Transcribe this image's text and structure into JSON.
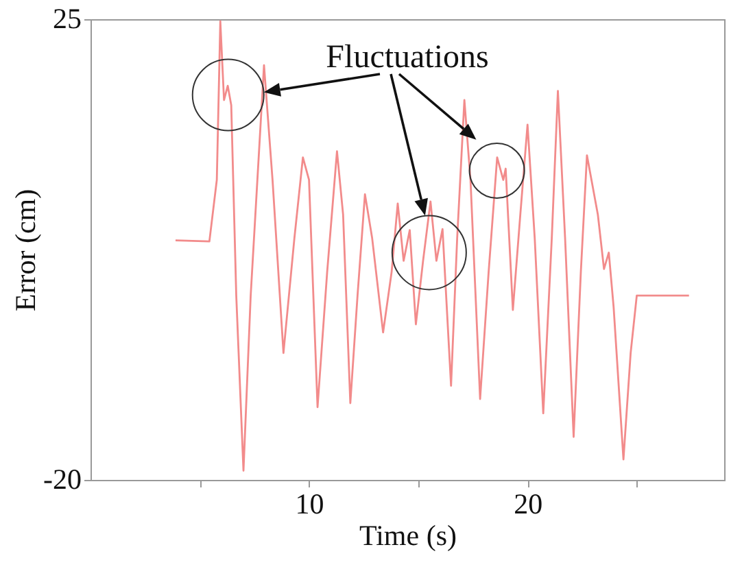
{
  "chart_data": {
    "type": "line",
    "xlabel": "Time (s)",
    "ylabel": "Error (cm)",
    "annotations": [
      {
        "text": "Fluctuations",
        "x": 18.61,
        "y": 11.5
      }
    ],
    "x": [
      3.89,
      5.44,
      5.78,
      5.94,
      6.11,
      6.28,
      6.44,
      6.67,
      7.0,
      7.33,
      7.94,
      8.33,
      8.83,
      9.33,
      9.72,
      10.0,
      10.39,
      10.83,
      11.28,
      11.56,
      11.89,
      12.22,
      12.56,
      12.89,
      13.39,
      13.78,
      14.06,
      14.33,
      14.61,
      14.89,
      15.22,
      15.56,
      15.83,
      16.11,
      16.5,
      16.78,
      17.11,
      17.39,
      17.83,
      18.22,
      18.61,
      18.89,
      19.0,
      19.33,
      19.67,
      20.0,
      20.33,
      20.72,
      21.11,
      21.39,
      21.72,
      22.11,
      22.44,
      22.72,
      23.22,
      23.5,
      23.72,
      23.94,
      24.39,
      24.72,
      25.0,
      27.39
    ],
    "series": [
      {
        "color": "#f28b8b",
        "values": [
          3.4,
          3.3,
          9.3,
          24.8,
          17.1,
          18.5,
          16.6,
          -2.0,
          -19.1,
          -2.0,
          20.5,
          9.3,
          -7.6,
          3.6,
          11.5,
          9.3,
          -12.9,
          0.3,
          12.1,
          5.9,
          -12.5,
          -2.0,
          7.9,
          3.6,
          -5.6,
          0.3,
          7.0,
          1.4,
          4.4,
          -4.8,
          1.4,
          7.2,
          1.4,
          4.5,
          -10.8,
          3.6,
          17.1,
          9.3,
          -12.1,
          0.3,
          11.5,
          9.3,
          10.4,
          -3.4,
          5.9,
          14.7,
          3.6,
          -13.5,
          3.6,
          18.0,
          3.6,
          -15.8,
          0.3,
          11.7,
          5.9,
          0.6,
          2.2,
          -3.1,
          -18.0,
          -7.6,
          -2.0,
          -2.0
        ]
      }
    ],
    "xlim": [
      0,
      29
    ],
    "xticks": [
      {
        "value": 5,
        "label": null
      },
      10,
      {
        "value": 15,
        "label": null
      },
      20,
      {
        "value": 25,
        "label": null
      }
    ],
    "ylim": [
      -20,
      25
    ],
    "yticks": [
      -20,
      25
    ],
    "grid": false,
    "marker": "none",
    "line_style": "solid"
  }
}
